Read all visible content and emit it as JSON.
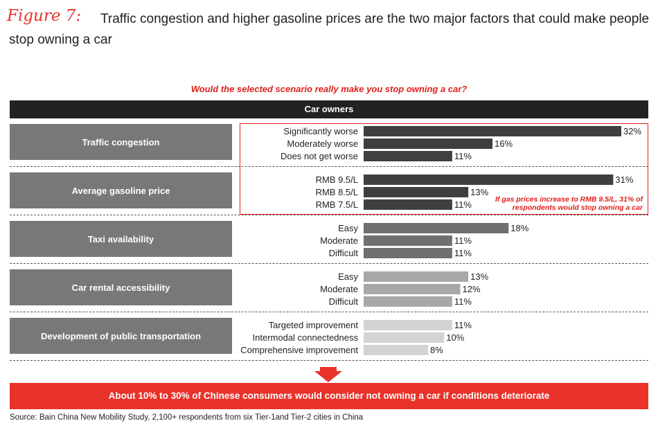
{
  "figure_label": "Figure 7:",
  "title": "Traffic congestion and higher gasoline prices are the two major factors that could make people stop owning a car",
  "question": "Would the selected scenario really make you stop owning a car?",
  "header": "Car owners",
  "callout": "If gas prices increase to RMB 9.5/L, 31% of respondents would stop owning a car",
  "conclusion": "About 10% to 30% of Chinese consumers would consider not owning a car if conditions deteriorate",
  "source": "Source: Bain China New Mobility Study, 2,100+ respondents from six Tier-1and Tier-2 cities in China",
  "colors": {
    "accent": "#e8322a",
    "bar_dark": "#3f3f41",
    "bar_medium": "#6f6f71",
    "bar_light": "#a8a8aa",
    "bar_lightest": "#d3d3d4",
    "group_box": "#78787a"
  },
  "chart_data": {
    "type": "bar",
    "orientation": "horizontal",
    "value_unit": "%",
    "xlim": [
      0,
      32
    ],
    "groups": [
      {
        "name": "Traffic congestion",
        "shade": "dark",
        "categories": [
          "Significantly worse",
          "Moderately worse",
          "Does not get worse"
        ],
        "values": [
          32,
          16,
          11
        ]
      },
      {
        "name": "Average gasoline price",
        "shade": "dark",
        "categories": [
          "RMB 9.5/L",
          "RMB 8.5/L",
          "RMB 7.5/L"
        ],
        "values": [
          31,
          13,
          11
        ]
      },
      {
        "name": "Taxi availability",
        "shade": "medium",
        "categories": [
          "Easy",
          "Moderate",
          "Difficult"
        ],
        "values": [
          18,
          11,
          11
        ]
      },
      {
        "name": "Car rental accessibility",
        "shade": "light",
        "categories": [
          "Easy",
          "Moderate",
          "Difficult"
        ],
        "values": [
          13,
          12,
          11
        ]
      },
      {
        "name": "Development of public transportation",
        "shade": "lightest",
        "categories": [
          "Targeted improvement",
          "Intermodal connectedness",
          "Comprehensive improvement"
        ],
        "values": [
          11,
          10,
          8
        ]
      }
    ]
  }
}
